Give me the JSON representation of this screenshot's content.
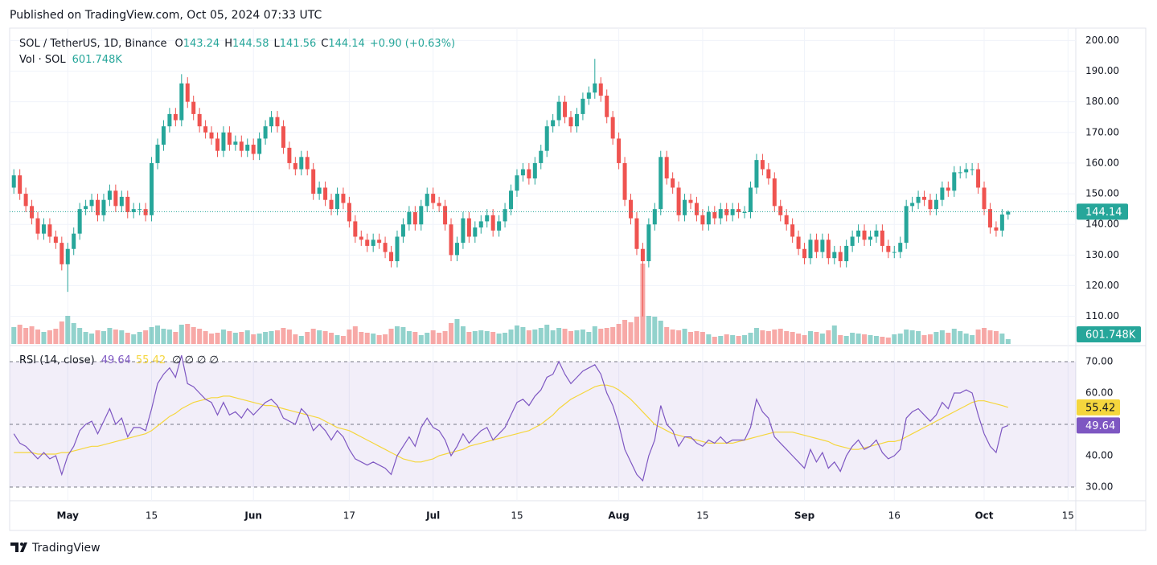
{
  "published": "Published on TradingView.com, Oct 05, 2024 07:33 UTC",
  "brand": "TradingView",
  "chart_data": {
    "type": "candlestick",
    "title": "SOL / TetherUS, 1D, Binance",
    "legend_labels": [
      "O",
      "H",
      "L",
      "C"
    ],
    "change": "+0.90 (+0.63%)",
    "volume_title": "Vol · SOL",
    "last_volume_label": "601.748K",
    "up_color": "#26a69a",
    "down_color": "#ef5350",
    "xlim": [
      -0.7,
      177.3
    ],
    "xticks": [
      {
        "value": 9,
        "label": "May"
      },
      {
        "value": 23,
        "label": "15"
      },
      {
        "value": 40,
        "label": "Jun"
      },
      {
        "value": 56,
        "label": "17"
      },
      {
        "value": 70,
        "label": "Jul"
      },
      {
        "value": 84,
        "label": "15"
      },
      {
        "value": 101,
        "label": "Aug"
      },
      {
        "value": 115,
        "label": "15"
      },
      {
        "value": 132,
        "label": "Sep"
      },
      {
        "value": 147,
        "label": "16"
      },
      {
        "value": 162,
        "label": "Oct"
      },
      {
        "value": 176,
        "label": "15"
      }
    ],
    "ylim": [
      101,
      203.5
    ],
    "yticks": [
      {
        "value": 110,
        "label": "110.00"
      },
      {
        "value": 120,
        "label": "120.00"
      },
      {
        "value": 130,
        "label": "130.00"
      },
      {
        "value": 140,
        "label": "140.00"
      },
      {
        "value": 150,
        "label": "150.00"
      },
      {
        "value": 160,
        "label": "160.00"
      },
      {
        "value": 170,
        "label": "170.00"
      },
      {
        "value": 180,
        "label": "180.00"
      },
      {
        "value": 190,
        "label": "190.00"
      },
      {
        "value": 200,
        "label": "200.00"
      }
    ],
    "open": [
      152,
      156,
      150,
      146,
      142,
      137,
      140,
      136,
      134,
      127,
      132,
      137,
      145,
      146,
      148,
      143,
      148,
      151,
      146,
      149,
      144,
      145,
      145,
      143,
      160,
      166,
      172,
      176,
      174,
      186,
      180,
      176,
      172,
      170,
      168,
      164,
      170,
      166,
      167,
      164,
      166,
      163,
      168,
      172,
      175,
      172,
      165,
      160,
      158,
      162,
      158,
      150,
      152,
      148,
      145,
      150,
      147,
      141,
      136,
      135,
      133,
      135,
      134,
      131,
      128,
      136,
      140,
      144,
      140,
      146,
      150,
      147,
      146,
      140,
      130,
      134,
      142,
      136,
      139,
      141,
      143,
      138,
      141,
      145,
      151,
      156,
      158,
      155,
      160,
      164,
      172,
      174,
      180,
      175,
      172,
      176,
      181,
      183,
      186,
      182,
      175,
      168,
      160,
      148,
      142,
      132,
      128,
      140,
      145,
      162,
      155,
      152,
      143,
      148,
      147,
      143,
      140,
      144,
      142,
      145,
      143,
      145,
      144,
      144,
      152,
      161,
      158,
      155,
      146,
      143,
      140,
      136,
      132,
      129,
      135,
      131,
      135,
      129,
      131,
      128,
      133,
      136,
      138,
      135,
      136,
      138,
      133,
      131,
      131,
      134,
      146,
      147,
      149,
      148,
      145,
      148,
      152,
      151,
      157,
      157,
      158,
      158,
      152,
      145,
      139,
      138,
      143.24
    ],
    "high": [
      158,
      158,
      152,
      148,
      144,
      142,
      142,
      138,
      136,
      134,
      139,
      147,
      148,
      150,
      150,
      150,
      153,
      153,
      151,
      151,
      147,
      147,
      147,
      162,
      168,
      174,
      178,
      178,
      189,
      188,
      182,
      178,
      174,
      172,
      170,
      172,
      172,
      169,
      169,
      168,
      168,
      170,
      174,
      177,
      177,
      174,
      167,
      162,
      164,
      164,
      160,
      154,
      154,
      150,
      152,
      152,
      149,
      143,
      138,
      137,
      137,
      137,
      136,
      133,
      138,
      142,
      146,
      146,
      148,
      152,
      152,
      149,
      148,
      142,
      136,
      144,
      144,
      141,
      143,
      145,
      145,
      143,
      147,
      153,
      158,
      160,
      160,
      162,
      166,
      174,
      176,
      182,
      182,
      177,
      178,
      183,
      185,
      194,
      188,
      184,
      177,
      170,
      162,
      150,
      144,
      134,
      142,
      147,
      164,
      164,
      157,
      154,
      150,
      150,
      149,
      145,
      146,
      146,
      147,
      147,
      147,
      147,
      146,
      154,
      163,
      163,
      160,
      157,
      148,
      145,
      142,
      138,
      134,
      137,
      137,
      137,
      137,
      133,
      133,
      135,
      138,
      140,
      140,
      138,
      140,
      140,
      135,
      133,
      136,
      148,
      149,
      151,
      151,
      150,
      150,
      154,
      154,
      159,
      159,
      160,
      160,
      160,
      154,
      147,
      141,
      145,
      144.58
    ],
    "low": [
      150,
      148,
      144,
      140,
      135,
      135,
      134,
      132,
      125,
      118,
      130,
      135,
      143,
      144,
      141,
      141,
      146,
      144,
      144,
      142,
      142,
      143,
      141,
      141,
      158,
      164,
      170,
      172,
      172,
      178,
      174,
      170,
      168,
      166,
      162,
      162,
      164,
      164,
      162,
      162,
      161,
      161,
      166,
      170,
      170,
      163,
      158,
      156,
      156,
      156,
      148,
      148,
      146,
      143,
      143,
      145,
      139,
      134,
      133,
      131,
      131,
      132,
      129,
      126,
      126,
      134,
      138,
      138,
      138,
      144,
      145,
      144,
      138,
      128,
      128,
      132,
      134,
      134,
      137,
      139,
      136,
      136,
      139,
      143,
      149,
      154,
      153,
      153,
      158,
      162,
      170,
      172,
      173,
      170,
      170,
      174,
      179,
      181,
      180,
      173,
      166,
      158,
      146,
      140,
      130,
      110,
      126,
      138,
      143,
      153,
      150,
      141,
      141,
      145,
      141,
      138,
      138,
      140,
      140,
      141,
      141,
      142,
      142,
      142,
      150,
      156,
      153,
      144,
      141,
      138,
      134,
      130,
      127,
      127,
      129,
      129,
      127,
      127,
      126,
      126,
      131,
      134,
      133,
      133,
      134,
      131,
      129,
      129,
      129,
      132,
      144,
      145,
      146,
      143,
      143,
      146,
      149,
      149,
      155,
      155,
      156,
      150,
      143,
      137,
      136,
      136,
      141.56
    ],
    "close": [
      156,
      150,
      146,
      142,
      137,
      140,
      136,
      134,
      127,
      132,
      137,
      145,
      146,
      148,
      143,
      148,
      151,
      146,
      149,
      144,
      145,
      145,
      143,
      160,
      166,
      172,
      176,
      174,
      186,
      180,
      176,
      172,
      170,
      168,
      164,
      170,
      166,
      167,
      164,
      166,
      163,
      168,
      172,
      175,
      172,
      165,
      160,
      158,
      162,
      158,
      150,
      152,
      148,
      145,
      150,
      147,
      141,
      136,
      135,
      133,
      135,
      134,
      131,
      128,
      136,
      140,
      144,
      140,
      146,
      150,
      147,
      146,
      140,
      130,
      134,
      142,
      136,
      139,
      141,
      143,
      138,
      141,
      145,
      151,
      156,
      158,
      155,
      160,
      164,
      172,
      174,
      180,
      175,
      172,
      176,
      181,
      183,
      186,
      182,
      175,
      168,
      160,
      148,
      142,
      132,
      128,
      140,
      145,
      162,
      155,
      152,
      143,
      148,
      147,
      143,
      140,
      144,
      142,
      145,
      143,
      145,
      144,
      144,
      152,
      161,
      158,
      155,
      146,
      143,
      140,
      136,
      132,
      129,
      135,
      131,
      135,
      129,
      131,
      128,
      133,
      136,
      138,
      135,
      136,
      138,
      133,
      131,
      131,
      134,
      146,
      147,
      149,
      148,
      145,
      148,
      152,
      151,
      157,
      157,
      158,
      158,
      152,
      145,
      139,
      138,
      143.24,
      144.14
    ],
    "volume": [
      2100000,
      2400000,
      2000000,
      2200000,
      1800000,
      1500000,
      1700000,
      1900000,
      2800000,
      3500000,
      2600000,
      2000000,
      1500000,
      1300000,
      1700000,
      1600000,
      2000000,
      1800000,
      1700000,
      1400000,
      1200000,
      1500000,
      1700000,
      2100000,
      2300000,
      1900000,
      1800000,
      1500000,
      2400000,
      2500000,
      2100000,
      1900000,
      1600000,
      1300000,
      1400000,
      1800000,
      1600000,
      1400000,
      1500000,
      1700000,
      1200000,
      1300000,
      1500000,
      1600000,
      1700000,
      2000000,
      1800000,
      1200000,
      1000000,
      1500000,
      1900000,
      1700000,
      1600000,
      1400000,
      1100000,
      1000000,
      1800000,
      2200000,
      1500000,
      1400000,
      1300000,
      1100000,
      1200000,
      1900000,
      2200000,
      2100000,
      1600000,
      1500000,
      1100000,
      1400000,
      1700000,
      1400000,
      1600000,
      2600000,
      3100000,
      2200000,
      1500000,
      1600000,
      1700000,
      1600000,
      1500000,
      1300000,
      1400000,
      1800000,
      2300000,
      2100000,
      1700000,
      1800000,
      2000000,
      2400000,
      1700000,
      2000000,
      1900000,
      1600000,
      1700000,
      1800000,
      1500000,
      2200000,
      1900000,
      2000000,
      2100000,
      2500000,
      3000000,
      2700000,
      3400000,
      10000000,
      3500000,
      3400000,
      2900000,
      2100000,
      1800000,
      1700000,
      1900000,
      1500000,
      1600000,
      1500000,
      1200000,
      900000,
      1000000,
      1200000,
      1100000,
      1000000,
      1100000,
      1400000,
      2000000,
      1700000,
      1600000,
      1800000,
      1900000,
      1600000,
      1500000,
      1300000,
      1100000,
      1600000,
      1500000,
      1300000,
      1700000,
      2300000,
      1100000,
      1000000,
      1400000,
      1300000,
      1200000,
      1100000,
      1000000,
      900000,
      800000,
      1200000,
      1300000,
      1800000,
      1700000,
      1600000,
      1100000,
      1200000,
      1500000,
      1700000,
      1400000,
      1900000,
      1600000,
      1300000,
      1100000,
      1800000,
      2000000,
      1700000,
      1600000,
      1300000,
      601748
    ]
  },
  "rsi_chart": {
    "type": "line",
    "title": "RSI (14, close)",
    "extra": "∅ ∅ ∅ ∅",
    "rsi_color": "#7e57c2",
    "ma_color": "#f5d63d",
    "ylim": [
      25.9,
      74.6
    ],
    "yticks": [
      {
        "value": 30,
        "label": "30.00"
      },
      {
        "value": 40,
        "label": "40.00"
      },
      {
        "value": 60,
        "label": "60.00"
      },
      {
        "value": 70,
        "label": "70.00"
      }
    ],
    "bands": [
      30,
      50,
      70
    ],
    "rsi": [
      47,
      44,
      43,
      41,
      39,
      41,
      39,
      40,
      34,
      40,
      43,
      48,
      50,
      51,
      47,
      51,
      55,
      50,
      52,
      46,
      49,
      49,
      48,
      55,
      63,
      66,
      68,
      65,
      72,
      63,
      62,
      60,
      58,
      57,
      53,
      57,
      53,
      54,
      52,
      55,
      53,
      55,
      57,
      58,
      56,
      52,
      51,
      50,
      55,
      53,
      48,
      50,
      48,
      45,
      48,
      46,
      42,
      39,
      38,
      37,
      38,
      37,
      36,
      34,
      40,
      43,
      46,
      43,
      49,
      52,
      49,
      48,
      45,
      40,
      43,
      47,
      44,
      46,
      48,
      49,
      45,
      47,
      49,
      53,
      57,
      58,
      56,
      59,
      61,
      65,
      66,
      70,
      66,
      63,
      65,
      67,
      68,
      69,
      66,
      60,
      56,
      50,
      42,
      38,
      34,
      32,
      40,
      45,
      56,
      50,
      48,
      43,
      46,
      46,
      44,
      43,
      45,
      44,
      46,
      44,
      45,
      45,
      45,
      49,
      58,
      54,
      52,
      46,
      44,
      42,
      40,
      38,
      36,
      42,
      38,
      41,
      36,
      38,
      35,
      40,
      43,
      45,
      42,
      43,
      45,
      41,
      39,
      40,
      42,
      52,
      54,
      55,
      53,
      51,
      53,
      57,
      55,
      60,
      60,
      61,
      60,
      53,
      47,
      43,
      41,
      48.9,
      49.64
    ],
    "ma": [
      41,
      41,
      41,
      41,
      40.5,
      40.5,
      40.5,
      40.5,
      41,
      41,
      41.5,
      42,
      42.5,
      43,
      43,
      43.5,
      44,
      44.5,
      45,
      45.5,
      46,
      46.5,
      47,
      48,
      49.5,
      51,
      52.5,
      53.5,
      55,
      56,
      57,
      57.5,
      58,
      58.5,
      58.5,
      59,
      59,
      58.5,
      58,
      57.5,
      57,
      56.5,
      56,
      56,
      55.5,
      55,
      54.5,
      54,
      53.5,
      53,
      52.5,
      52,
      51,
      50,
      49,
      48.5,
      48,
      47,
      46,
      45,
      44,
      43,
      42,
      41,
      40,
      39,
      38.5,
      38,
      38,
      38.5,
      39,
      40,
      40.5,
      41,
      41.5,
      42,
      43,
      43.5,
      44,
      44.5,
      45,
      45.5,
      46,
      46.5,
      47,
      47.5,
      48,
      49,
      50,
      51.5,
      53,
      55,
      56.5,
      58,
      59,
      60,
      61,
      62,
      62.5,
      62.5,
      62,
      61,
      59.5,
      58,
      56,
      54,
      52,
      50,
      49,
      48,
      47,
      46.5,
      46,
      45.5,
      45,
      44.5,
      44,
      44,
      44,
      44,
      44,
      44.5,
      45,
      45.5,
      46,
      46.5,
      47,
      47.5,
      47.5,
      47.5,
      47.5,
      47,
      46.5,
      46,
      45.5,
      45,
      44.5,
      43.5,
      43,
      42.5,
      42,
      42,
      42.5,
      43,
      43.5,
      44,
      44.5,
      44.5,
      45,
      46,
      47,
      48,
      49,
      50,
      51,
      52,
      53,
      54,
      55,
      56,
      57,
      57.5,
      57.5,
      57,
      56.5,
      56,
      55.42
    ]
  }
}
